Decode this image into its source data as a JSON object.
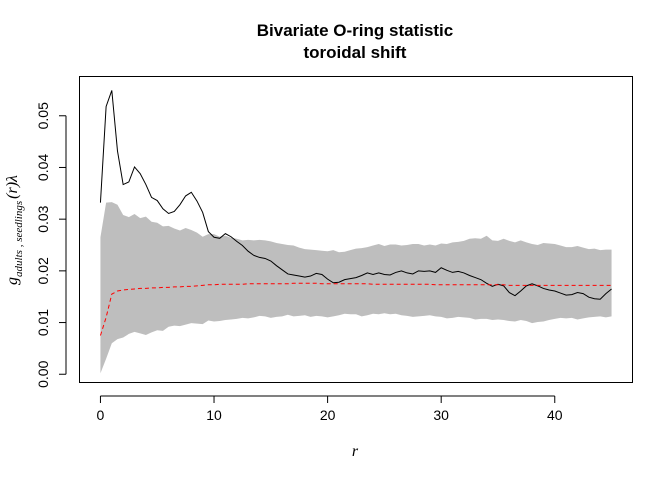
{
  "chart_data": {
    "type": "line",
    "title": "Bivariate O-ring statistic",
    "subtitle": "toroidal shift",
    "xlabel": "r",
    "ylabel": {
      "main": "g",
      "subscript": "adults , seedlings",
      "suffix": "(r)λ"
    },
    "xlim": [
      -1.8,
      46.8
    ],
    "ylim": [
      -0.0015,
      0.0575
    ],
    "xticks": [
      0,
      10,
      20,
      30,
      40
    ],
    "yticks": [
      0.0,
      0.01,
      0.02,
      0.03,
      0.04,
      0.05
    ],
    "xtick_labels": [
      "0",
      "10",
      "20",
      "30",
      "40"
    ],
    "ytick_labels": [
      "0.00",
      "0.01",
      "0.02",
      "0.03",
      "0.04",
      "0.05"
    ],
    "grid": false,
    "legend": null,
    "x": [
      0,
      0.5,
      1,
      1.5,
      2,
      2.5,
      3,
      3.5,
      4,
      4.5,
      5,
      5.5,
      6,
      6.5,
      7,
      7.5,
      8,
      8.5,
      9,
      9.5,
      10,
      10.5,
      11,
      11.5,
      12,
      12.5,
      13,
      13.5,
      14,
      14.5,
      15,
      15.5,
      16,
      16.5,
      17,
      17.5,
      18,
      18.5,
      19,
      19.5,
      20,
      20.5,
      21,
      21.5,
      22,
      22.5,
      23,
      23.5,
      24,
      24.5,
      25,
      25.5,
      26,
      26.5,
      27,
      27.5,
      28,
      28.5,
      29,
      29.5,
      30,
      30.5,
      31,
      31.5,
      32,
      32.5,
      33,
      33.5,
      34,
      34.5,
      35,
      35.5,
      36,
      36.5,
      37,
      37.5,
      38,
      38.5,
      39,
      39.5,
      40,
      40.5,
      41,
      41.5,
      42,
      42.5,
      43,
      43.5,
      44,
      44.5,
      45
    ],
    "series": [
      {
        "role": "observed",
        "color": "#000000",
        "dash": "solid",
        "values": [
          0.0332,
          0.0518,
          0.0549,
          0.0432,
          0.0367,
          0.0372,
          0.0401,
          0.0388,
          0.0367,
          0.0342,
          0.0336,
          0.032,
          0.0311,
          0.0315,
          0.0328,
          0.0345,
          0.0352,
          0.0335,
          0.0313,
          0.0276,
          0.0265,
          0.0263,
          0.0272,
          0.0266,
          0.0257,
          0.0249,
          0.0238,
          0.023,
          0.0226,
          0.0224,
          0.0219,
          0.021,
          0.0202,
          0.0194,
          0.0192,
          0.019,
          0.0188,
          0.019,
          0.0195,
          0.0193,
          0.0184,
          0.0177,
          0.0178,
          0.0183,
          0.0185,
          0.0187,
          0.0191,
          0.0196,
          0.0193,
          0.0196,
          0.0193,
          0.0192,
          0.0197,
          0.02,
          0.0196,
          0.0194,
          0.02,
          0.0199,
          0.02,
          0.0197,
          0.0206,
          0.0201,
          0.0197,
          0.0199,
          0.0196,
          0.0191,
          0.0187,
          0.0183,
          0.0176,
          0.017,
          0.0174,
          0.0171,
          0.0158,
          0.0152,
          0.0161,
          0.0171,
          0.0175,
          0.0171,
          0.0166,
          0.0163,
          0.0161,
          0.0157,
          0.0153,
          0.0154,
          0.0158,
          0.0156,
          0.0149,
          0.0146,
          0.0145,
          0.0156,
          0.0165
        ]
      },
      {
        "role": "theoretical",
        "color": "#ff0000",
        "dash": "dashed",
        "values": [
          0.0075,
          0.011,
          0.0155,
          0.0161,
          0.0163,
          0.0164,
          0.0165,
          0.0166,
          0.0166,
          0.0167,
          0.0167,
          0.0168,
          0.0168,
          0.0169,
          0.0169,
          0.017,
          0.017,
          0.0171,
          0.0172,
          0.0173,
          0.0173,
          0.0174,
          0.0174,
          0.0174,
          0.0174,
          0.0174,
          0.0175,
          0.0175,
          0.0175,
          0.0175,
          0.0175,
          0.0175,
          0.0175,
          0.0175,
          0.0176,
          0.0176,
          0.0176,
          0.0176,
          0.0176,
          0.0175,
          0.0175,
          0.0175,
          0.0175,
          0.0175,
          0.0175,
          0.0175,
          0.0175,
          0.0175,
          0.0174,
          0.0174,
          0.0174,
          0.0174,
          0.0174,
          0.0174,
          0.0174,
          0.0174,
          0.0174,
          0.0174,
          0.0174,
          0.0173,
          0.0173,
          0.0173,
          0.0173,
          0.0173,
          0.0173,
          0.0173,
          0.0173,
          0.0173,
          0.0173,
          0.0173,
          0.0173,
          0.0173,
          0.0172,
          0.0172,
          0.0172,
          0.0172,
          0.0172,
          0.0172,
          0.0172,
          0.0172,
          0.0172,
          0.0172,
          0.0172,
          0.0172,
          0.0172,
          0.0172,
          0.0172,
          0.0172,
          0.0172,
          0.0172,
          0.0172
        ]
      }
    ],
    "envelope": {
      "color": "#bebebe",
      "upper": [
        0.0265,
        0.0332,
        0.0333,
        0.0328,
        0.0308,
        0.0304,
        0.031,
        0.0302,
        0.0305,
        0.0295,
        0.0293,
        0.0286,
        0.0287,
        0.0282,
        0.0278,
        0.0283,
        0.0279,
        0.0274,
        0.0266,
        0.0271,
        0.0271,
        0.0266,
        0.0268,
        0.0264,
        0.0262,
        0.0259,
        0.026,
        0.0259,
        0.026,
        0.0259,
        0.0257,
        0.0254,
        0.0252,
        0.025,
        0.0249,
        0.0245,
        0.0242,
        0.0241,
        0.024,
        0.0239,
        0.0238,
        0.024,
        0.0236,
        0.0237,
        0.024,
        0.0243,
        0.0244,
        0.0246,
        0.0249,
        0.0252,
        0.0248,
        0.0251,
        0.0251,
        0.0249,
        0.025,
        0.0252,
        0.0252,
        0.0249,
        0.0251,
        0.0249,
        0.0253,
        0.0252,
        0.0255,
        0.0256,
        0.0258,
        0.0262,
        0.0263,
        0.0262,
        0.0268,
        0.0259,
        0.0258,
        0.0262,
        0.0258,
        0.0255,
        0.0259,
        0.0255,
        0.0252,
        0.025,
        0.0254,
        0.0253,
        0.0252,
        0.0249,
        0.0246,
        0.0246,
        0.0248,
        0.0245,
        0.0242,
        0.0243,
        0.024,
        0.0241,
        0.0241
      ],
      "lower": [
        0.0002,
        0.003,
        0.006,
        0.0068,
        0.0071,
        0.0078,
        0.0082,
        0.0079,
        0.0076,
        0.0081,
        0.0085,
        0.0084,
        0.0092,
        0.0094,
        0.0093,
        0.0096,
        0.0099,
        0.0098,
        0.0097,
        0.0104,
        0.0102,
        0.0103,
        0.0105,
        0.0106,
        0.0107,
        0.0109,
        0.0108,
        0.011,
        0.0113,
        0.0112,
        0.0109,
        0.0111,
        0.0112,
        0.0115,
        0.0112,
        0.0113,
        0.0114,
        0.0111,
        0.0113,
        0.0112,
        0.011,
        0.0112,
        0.0114,
        0.0117,
        0.0116,
        0.0116,
        0.0112,
        0.0114,
        0.0117,
        0.0116,
        0.0118,
        0.0116,
        0.0117,
        0.0114,
        0.0113,
        0.0111,
        0.0112,
        0.0113,
        0.0114,
        0.0112,
        0.0111,
        0.0108,
        0.0109,
        0.0111,
        0.011,
        0.0109,
        0.0106,
        0.0107,
        0.0107,
        0.0105,
        0.0106,
        0.0105,
        0.0103,
        0.0102,
        0.0105,
        0.0103,
        0.0099,
        0.0101,
        0.0102,
        0.0105,
        0.0107,
        0.0109,
        0.0108,
        0.0109,
        0.0106,
        0.0108,
        0.011,
        0.0111,
        0.0112,
        0.011,
        0.0112
      ]
    }
  }
}
